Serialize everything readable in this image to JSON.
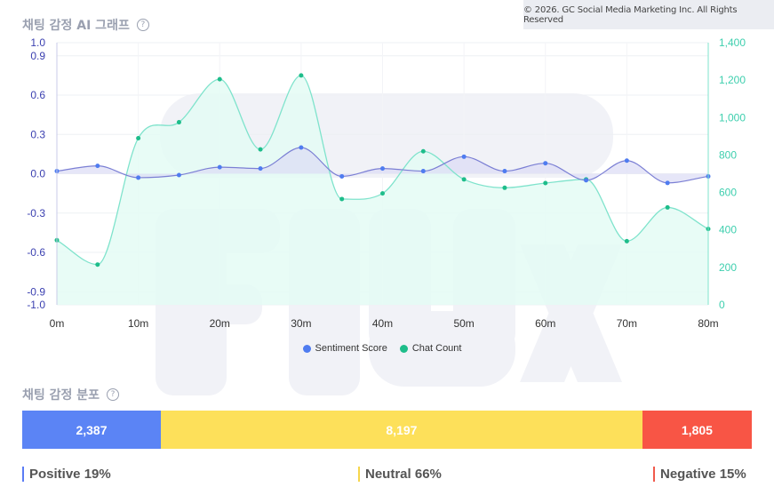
{
  "copyright": "© 2026. GC Social Media Marketing Inc. All Rights Reserved",
  "chart_title": "채팅 감정 AI 그래프",
  "help_icon": "question-circle-icon",
  "chart_data": {
    "type": "line",
    "x": [
      "0m",
      "5m",
      "10m",
      "15m",
      "20m",
      "25m",
      "30m",
      "35m",
      "40m",
      "45m",
      "50m",
      "55m",
      "60m",
      "65m",
      "70m",
      "75m",
      "80m"
    ],
    "x_tick_labels": [
      "0m",
      "10m",
      "20m",
      "30m",
      "40m",
      "50m",
      "60m",
      "70m",
      "80m"
    ],
    "y_left_ticks": [
      "1.0",
      "0.9",
      "0.6",
      "0.3",
      "0.0",
      "-0.3",
      "-0.6",
      "-0.9",
      "-1.0"
    ],
    "y_right_ticks": [
      "1,400",
      "1,200",
      "1,000",
      "800",
      "600",
      "400",
      "200",
      "0"
    ],
    "y_left_range": [
      -1.0,
      1.0
    ],
    "y_right_range": [
      0,
      1400
    ],
    "grid": true,
    "legend_position": "bottom",
    "series": [
      {
        "name": "Sentiment Score",
        "axis": "left",
        "color": "#7b7fd4",
        "values": [
          0.02,
          0.06,
          -0.03,
          -0.01,
          0.05,
          0.04,
          0.2,
          -0.02,
          0.04,
          0.02,
          0.13,
          0.02,
          0.08,
          -0.05,
          0.1,
          -0.07,
          -0.02
        ]
      },
      {
        "name": "Chat Count",
        "axis": "right",
        "color": "#7fe3cc",
        "values": [
          345,
          215,
          890,
          975,
          1205,
          830,
          1225,
          565,
          595,
          820,
          670,
          625,
          650,
          670,
          340,
          520,
          405
        ]
      }
    ]
  },
  "legend": [
    {
      "label": "Sentiment Score",
      "color": "#4f7cf0"
    },
    {
      "label": "Chat Count",
      "color": "#1ebd8a"
    }
  ],
  "distribution_title": "채팅 감정 분포",
  "distribution": [
    {
      "count": "2,387",
      "label": "Positive 19%",
      "share": 0.19,
      "color": "#5b84f5",
      "marker": "#5b7cf5"
    },
    {
      "count": "8,197",
      "label": "Neutral 66%",
      "share": 0.66,
      "color": "#fde05a",
      "marker": "#f6d64c"
    },
    {
      "count": "1,805",
      "label": "Negative 15%",
      "share": 0.15,
      "color": "#f85545",
      "marker": "#f05a4c"
    }
  ]
}
